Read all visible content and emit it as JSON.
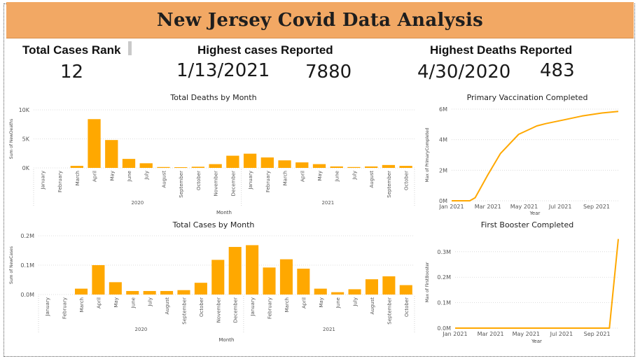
{
  "header": {
    "title": "New Jersey Covid Data Analysis"
  },
  "kpis": {
    "rank_label": "Total Cases Rank",
    "rank_value": "12",
    "highest_cases_label": "Highest cases Reported",
    "highest_cases_date": "1/13/2021",
    "highest_cases_value": "7880",
    "highest_deaths_label": "Highest Deaths Reported",
    "highest_deaths_date": "4/30/2020",
    "highest_deaths_value": "483"
  },
  "colors": {
    "accent": "#f2a864",
    "series": "#ffa800"
  },
  "chart_data": [
    {
      "id": "deaths",
      "type": "bar",
      "title": "Total Deaths by Month",
      "xlabel": "Month",
      "ylabel": "Sum of NewDeaths",
      "ylim": [
        0,
        10000
      ],
      "yticks": [
        {
          "v": 0,
          "label": "0K"
        },
        {
          "v": 5000,
          "label": "5K"
        },
        {
          "v": 10000,
          "label": "10K"
        }
      ],
      "categories": [
        "January",
        "February",
        "March",
        "April",
        "May",
        "June",
        "July",
        "August",
        "September",
        "October",
        "November",
        "December",
        "January",
        "February",
        "March",
        "April",
        "May",
        "June",
        "July",
        "August",
        "September",
        "October"
      ],
      "values": [
        0,
        0,
        350,
        8400,
        4800,
        1550,
        800,
        150,
        120,
        200,
        650,
        2100,
        2450,
        1800,
        1300,
        950,
        650,
        250,
        150,
        250,
        500,
        350
      ],
      "groups": [
        {
          "label": "2020",
          "start": 0,
          "end": 11
        },
        {
          "label": "2021",
          "start": 12,
          "end": 21
        }
      ]
    },
    {
      "id": "cases",
      "type": "bar",
      "title": "Total Cases by Month",
      "xlabel": "Month",
      "ylabel": "Sum of NewCases",
      "ylim": [
        0,
        200000
      ],
      "yticks": [
        {
          "v": 0,
          "label": "0.0M"
        },
        {
          "v": 100000,
          "label": "0.1M"
        },
        {
          "v": 200000,
          "label": "0.2M"
        }
      ],
      "categories": [
        "January",
        "February",
        "March",
        "April",
        "May",
        "June",
        "July",
        "August",
        "September",
        "October",
        "November",
        "December",
        "January",
        "February",
        "March",
        "April",
        "May",
        "June",
        "July",
        "August",
        "September",
        "October"
      ],
      "values": [
        0,
        0,
        20000,
        100000,
        42000,
        12000,
        12000,
        12000,
        15000,
        40000,
        118000,
        162000,
        168000,
        92000,
        120000,
        88000,
        20000,
        8000,
        18000,
        52000,
        62000,
        32000
      ],
      "groups": [
        {
          "label": "2020",
          "start": 0,
          "end": 11
        },
        {
          "label": "2021",
          "start": 12,
          "end": 21
        }
      ]
    },
    {
      "id": "vaccination",
      "type": "line",
      "title": "Primary Vaccination Completed",
      "xlabel": "Year",
      "ylabel": "Max of PrimaryCompleted",
      "x": [
        0,
        1,
        1.3,
        2,
        2.7,
        3.7,
        4.7,
        5.2,
        6.2,
        7.2,
        8.3,
        9.2
      ],
      "y": [
        0,
        0,
        0.2,
        1.7,
        3.1,
        4.35,
        4.9,
        5.05,
        5.3,
        5.55,
        5.75,
        5.85
      ],
      "xlim": [
        0,
        9.2
      ],
      "ylim": [
        0,
        6
      ],
      "xticks": [
        {
          "v": 0,
          "label": "Jan 2021"
        },
        {
          "v": 2,
          "label": "Mar 2021"
        },
        {
          "v": 4,
          "label": "May 2021"
        },
        {
          "v": 6,
          "label": "Jul 2021"
        },
        {
          "v": 8,
          "label": "Sep 2021"
        }
      ],
      "yticks": [
        {
          "v": 0,
          "label": "0M"
        },
        {
          "v": 2,
          "label": "2M"
        },
        {
          "v": 4,
          "label": "4M"
        },
        {
          "v": 6,
          "label": "6M"
        }
      ]
    },
    {
      "id": "booster",
      "type": "line",
      "title": "First Booster Completed",
      "xlabel": "Year",
      "ylabel": "Max of FirstBooster",
      "x": [
        0,
        1,
        2,
        3,
        4,
        5,
        6,
        7,
        8,
        8.7,
        9.2
      ],
      "y": [
        0,
        0,
        0,
        0,
        0,
        0,
        0,
        0,
        0,
        0,
        0.35
      ],
      "xlim": [
        0,
        9.2
      ],
      "ylim": [
        0,
        0.36
      ],
      "xticks": [
        {
          "v": 0,
          "label": "Jan 2021"
        },
        {
          "v": 2,
          "label": "Mar 2021"
        },
        {
          "v": 4,
          "label": "May 2021"
        },
        {
          "v": 6,
          "label": "Jul 2021"
        },
        {
          "v": 8,
          "label": "Sep 2021"
        }
      ],
      "yticks": [
        {
          "v": 0,
          "label": "0.0M"
        },
        {
          "v": 0.1,
          "label": "0.1M"
        },
        {
          "v": 0.2,
          "label": "0.2M"
        },
        {
          "v": 0.3,
          "label": "0.3M"
        }
      ]
    }
  ]
}
